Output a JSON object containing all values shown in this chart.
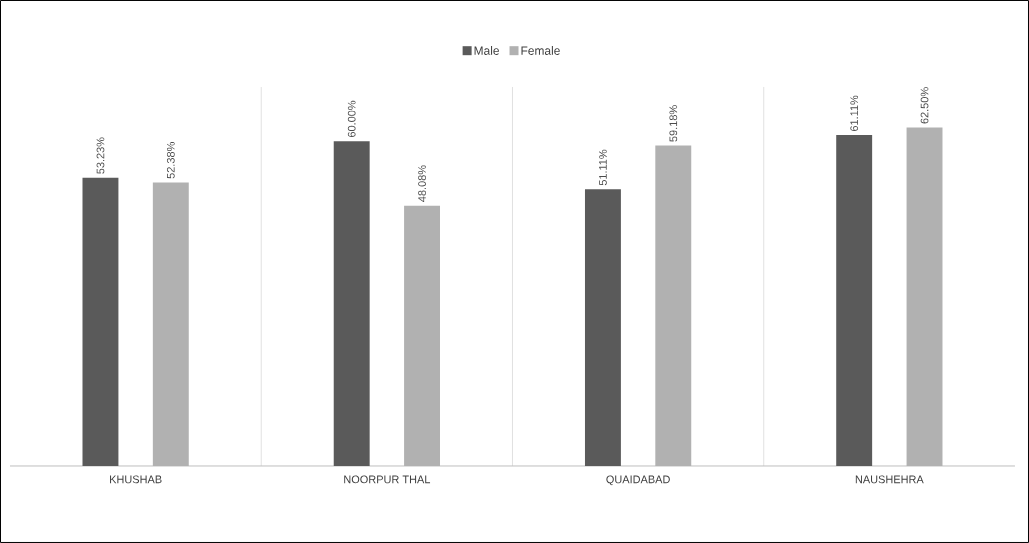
{
  "chart_data": {
    "type": "bar",
    "categories": [
      "KHUSHAB",
      "NOORPUR THAL",
      "QUAIDABAD",
      "NAUSHEHRA"
    ],
    "series": [
      {
        "name": "Male",
        "color": "#5a5a5a",
        "values": [
          53.23,
          60.0,
          51.11,
          61.11
        ],
        "value_labels": [
          "53.23%",
          "60.00%",
          "51.11%",
          "61.11%"
        ]
      },
      {
        "name": "Female",
        "color": "#b1b1b1",
        "values": [
          52.38,
          48.08,
          59.18,
          62.5
        ],
        "value_labels": [
          "52.38%",
          "48.08%",
          "59.18%",
          "62.50%"
        ]
      }
    ],
    "ylim": [
      0,
      70
    ],
    "tick_labels": "x",
    "grid": "x",
    "legend": "top"
  }
}
